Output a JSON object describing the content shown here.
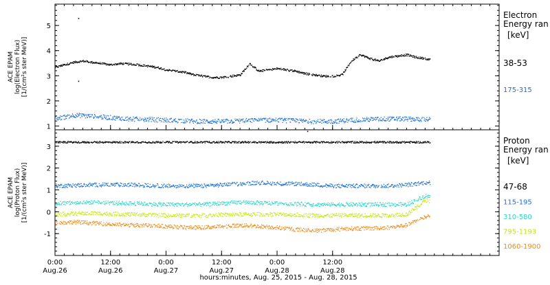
{
  "chart_data": [
    {
      "type": "scatter",
      "ylabel_lines": [
        "ACE EPAM",
        "log(Electron Flux)",
        "[1/(cm²s ster MeV)]"
      ],
      "xlim": [
        0,
        96
      ],
      "ylim": [
        0.85,
        5.85
      ],
      "yticks": [
        1,
        2,
        3,
        4,
        5
      ],
      "legend": {
        "placement": "right",
        "title_lines": [
          "Electron",
          "Energy ran"
        ],
        "unit": "[keV]",
        "entries": [
          "38-53",
          "175-315"
        ]
      },
      "series": [
        {
          "name": "38-53",
          "color": "#000000",
          "x_end": 81,
          "x": [
            0,
            2,
            4,
            6,
            8,
            10,
            12,
            14,
            16,
            18,
            20,
            22,
            24,
            26,
            28,
            30,
            32,
            34,
            36,
            38,
            40,
            42,
            44,
            46,
            48,
            50,
            52,
            54,
            56,
            58,
            60,
            62,
            64,
            66,
            68,
            70,
            72,
            74,
            76,
            78,
            80,
            81
          ],
          "values": [
            3.35,
            3.45,
            3.55,
            3.6,
            3.55,
            3.5,
            3.45,
            3.5,
            3.48,
            3.45,
            3.4,
            3.35,
            3.25,
            3.2,
            3.15,
            3.05,
            3.0,
            2.95,
            2.95,
            3.0,
            3.05,
            3.5,
            3.2,
            3.25,
            3.3,
            3.25,
            3.2,
            3.1,
            3.05,
            3.0,
            3.0,
            3.05,
            3.6,
            3.85,
            3.7,
            3.6,
            3.75,
            3.8,
            3.85,
            3.75,
            3.7,
            3.65
          ],
          "outliers": [
            {
              "x": 5,
              "y": 5.3
            },
            {
              "x": 5,
              "y": 2.8
            }
          ]
        },
        {
          "name": "175-315",
          "color": "#1a6fd1",
          "x_end": 81,
          "x": [
            0,
            4,
            8,
            12,
            16,
            20,
            24,
            28,
            32,
            36,
            40,
            44,
            48,
            52,
            56,
            60,
            64,
            68,
            72,
            76,
            80,
            81
          ],
          "values": [
            1.3,
            1.45,
            1.4,
            1.35,
            1.3,
            1.28,
            1.25,
            1.22,
            1.2,
            1.2,
            1.22,
            1.25,
            1.25,
            1.22,
            1.2,
            1.2,
            1.25,
            1.28,
            1.3,
            1.3,
            1.28,
            1.28
          ]
        }
      ]
    },
    {
      "type": "scatter",
      "ylabel_lines": [
        "ACE EPAM",
        "log(Proton Flux)",
        "[1/(cm²s ster MeV)]"
      ],
      "xlim": [
        0,
        96
      ],
      "ylim": [
        -2.0,
        3.75
      ],
      "yticks": [
        -1,
        0,
        1,
        2,
        3
      ],
      "legend": {
        "placement": "right",
        "title_lines": [
          "Proton",
          "Energy ran"
        ],
        "unit": "[keV]",
        "entries": [
          "47-68",
          "115-195",
          "310-580",
          "795-1193",
          "1060-1900"
        ]
      },
      "series": [
        {
          "name": "47-68",
          "color": "#000000",
          "x_end": 81,
          "x": [
            0,
            20,
            40,
            60,
            81
          ],
          "values": [
            3.2,
            3.2,
            3.2,
            3.2,
            3.2
          ],
          "outliers": [
            {
              "x": 54.5,
              "y": 3.7
            }
          ]
        },
        {
          "name": "115-195",
          "color": "#1a6fd1",
          "x_end": 81,
          "x": [
            0,
            8,
            16,
            24,
            32,
            40,
            44,
            48,
            52,
            56,
            60,
            64,
            68,
            72,
            76,
            80,
            81
          ],
          "values": [
            1.2,
            1.25,
            1.25,
            1.2,
            1.2,
            1.3,
            1.35,
            1.3,
            1.3,
            1.25,
            1.2,
            1.2,
            1.2,
            1.2,
            1.25,
            1.35,
            1.35
          ]
        },
        {
          "name": "310-580",
          "color": "#2bd6c8",
          "x_end": 81,
          "x": [
            0,
            8,
            16,
            24,
            32,
            40,
            48,
            56,
            64,
            72,
            76,
            78,
            80,
            81
          ],
          "values": [
            0.4,
            0.45,
            0.4,
            0.35,
            0.35,
            0.45,
            0.4,
            0.35,
            0.35,
            0.35,
            0.35,
            0.55,
            0.75,
            0.7
          ]
        },
        {
          "name": "795-1193",
          "color": "#c8e60a",
          "x_end": 81,
          "x": [
            0,
            8,
            16,
            24,
            32,
            40,
            48,
            56,
            64,
            72,
            76,
            78,
            80,
            81
          ],
          "values": [
            -0.1,
            -0.05,
            -0.1,
            -0.15,
            -0.15,
            -0.1,
            -0.1,
            -0.15,
            -0.15,
            -0.15,
            -0.1,
            0.2,
            0.55,
            0.5
          ]
        },
        {
          "name": "1060-1900",
          "color": "#ee8a18",
          "x_end": 81,
          "x": [
            0,
            4,
            8,
            12,
            16,
            20,
            24,
            28,
            32,
            36,
            40,
            44,
            48,
            52,
            56,
            60,
            64,
            68,
            72,
            76,
            80,
            81
          ],
          "values": [
            -0.5,
            -0.45,
            -0.5,
            -0.55,
            -0.6,
            -0.6,
            -0.65,
            -0.7,
            -0.7,
            -0.65,
            -0.6,
            -0.65,
            -0.7,
            -0.8,
            -0.85,
            -0.8,
            -0.75,
            -0.75,
            -0.7,
            -0.6,
            -0.2,
            -0.15
          ]
        }
      ]
    }
  ],
  "x_axis": {
    "ticks": [
      {
        "x": 0,
        "time": "0:00",
        "date": "Aug.26"
      },
      {
        "x": 12,
        "time": "12:00",
        "date": "Aug.26"
      },
      {
        "x": 24,
        "time": "0:00",
        "date": "Aug.27"
      },
      {
        "x": 36,
        "time": "12:00",
        "date": "Aug.27"
      },
      {
        "x": 48,
        "time": "0:00",
        "date": "Aug.28"
      },
      {
        "x": 60,
        "time": "12:00",
        "date": "Aug.28"
      }
    ],
    "title": "hours:minutes, Aug. 25, 2015 - Aug. 28, 2015"
  }
}
